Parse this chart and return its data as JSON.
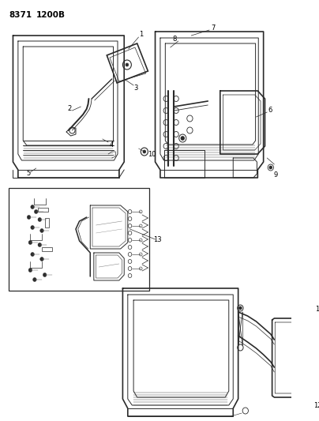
{
  "title_part1": "8371",
  "title_part2": "1200B",
  "bg_color": "#ffffff",
  "line_color": "#2a2a2a",
  "figsize": [
    4.04,
    5.33
  ],
  "dpi": 100,
  "label_fontsize": 6.0,
  "title_fontsize": 7.5,
  "diagram_lw": 1.2,
  "inner_lw": 0.7,
  "detail_lw": 0.5
}
